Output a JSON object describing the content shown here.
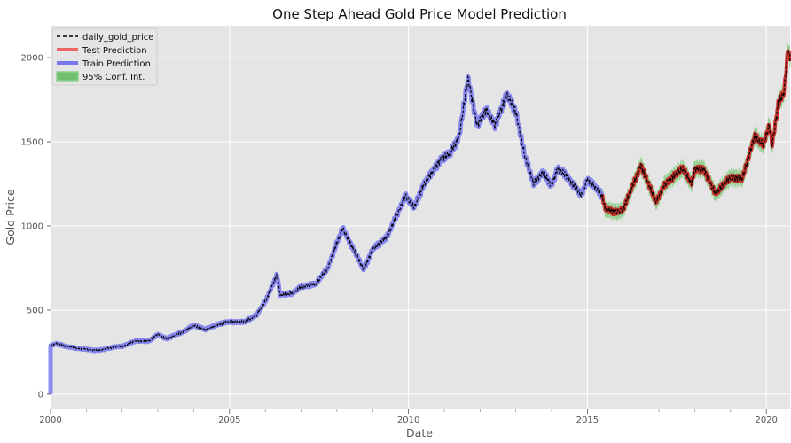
{
  "chart_data": {
    "type": "line",
    "title": "One Step Ahead Gold Price Model Prediction",
    "xlabel": "Date",
    "ylabel": "Gold Price",
    "xlim": [
      "2000-01-01",
      "2020-08-31"
    ],
    "ylim": [
      -90,
      2190
    ],
    "grid": true,
    "legend_position": "top-left",
    "x_major_ticks": [
      "2000",
      "2005",
      "2010",
      "2015",
      "2020"
    ],
    "y_ticks": [
      "0",
      "500",
      "1000",
      "1500",
      "2000"
    ],
    "legend": [
      {
        "label": "daily_gold_price",
        "style": "dashed-line",
        "color": "#000000"
      },
      {
        "label": "Test Prediction",
        "style": "line",
        "color": "#ee6666"
      },
      {
        "label": "Train Prediction",
        "style": "line",
        "color": "#7777ee"
      },
      {
        "label": "95% Conf. Int.",
        "style": "band",
        "color": "#6fbf6f"
      }
    ],
    "split_date": "2015-06-01",
    "series": [
      {
        "name": "daily_gold_price",
        "points": [
          [
            "2000-01-01",
            290
          ],
          [
            "2000-03-01",
            300
          ],
          [
            "2000-06-01",
            285
          ],
          [
            "2000-09-01",
            275
          ],
          [
            "2001-01-01",
            268
          ],
          [
            "2001-04-01",
            260
          ],
          [
            "2001-07-01",
            266
          ],
          [
            "2001-10-01",
            280
          ],
          [
            "2002-01-01",
            285
          ],
          [
            "2002-06-01",
            318
          ],
          [
            "2002-10-01",
            315
          ],
          [
            "2003-01-01",
            355
          ],
          [
            "2003-04-01",
            330
          ],
          [
            "2003-10-01",
            375
          ],
          [
            "2004-01-01",
            410
          ],
          [
            "2004-05-01",
            385
          ],
          [
            "2004-10-01",
            420
          ],
          [
            "2005-01-01",
            430
          ],
          [
            "2005-06-01",
            428
          ],
          [
            "2005-10-01",
            470
          ],
          [
            "2006-01-01",
            550
          ],
          [
            "2006-05-01",
            710
          ],
          [
            "2006-06-01",
            590
          ],
          [
            "2006-10-01",
            600
          ],
          [
            "2007-01-01",
            640
          ],
          [
            "2007-06-01",
            655
          ],
          [
            "2007-10-01",
            750
          ],
          [
            "2008-01-01",
            900
          ],
          [
            "2008-03-01",
            985
          ],
          [
            "2008-06-01",
            880
          ],
          [
            "2008-10-01",
            740
          ],
          [
            "2009-01-01",
            860
          ],
          [
            "2009-06-01",
            940
          ],
          [
            "2009-12-01",
            1180
          ],
          [
            "2010-03-01",
            1110
          ],
          [
            "2010-06-01",
            1240
          ],
          [
            "2010-12-01",
            1400
          ],
          [
            "2011-03-01",
            1430
          ],
          [
            "2011-06-01",
            1530
          ],
          [
            "2011-09-01",
            1880
          ],
          [
            "2011-12-01",
            1600
          ],
          [
            "2012-03-01",
            1690
          ],
          [
            "2012-06-01",
            1600
          ],
          [
            "2012-10-01",
            1780
          ],
          [
            "2013-01-01",
            1680
          ],
          [
            "2013-04-01",
            1420
          ],
          [
            "2013-07-01",
            1250
          ],
          [
            "2013-10-01",
            1320
          ],
          [
            "2014-01-01",
            1240
          ],
          [
            "2014-03-01",
            1340
          ],
          [
            "2014-06-01",
            1300
          ],
          [
            "2014-11-01",
            1180
          ],
          [
            "2015-01-01",
            1280
          ],
          [
            "2015-06-01",
            1180
          ],
          [
            "2015-07-01",
            1100
          ],
          [
            "2015-11-01",
            1080
          ],
          [
            "2016-01-01",
            1100
          ],
          [
            "2016-07-01",
            1360
          ],
          [
            "2016-12-01",
            1140
          ],
          [
            "2017-03-01",
            1250
          ],
          [
            "2017-09-01",
            1340
          ],
          [
            "2017-12-01",
            1250
          ],
          [
            "2018-01-01",
            1340
          ],
          [
            "2018-04-01",
            1340
          ],
          [
            "2018-08-01",
            1190
          ],
          [
            "2019-01-01",
            1290
          ],
          [
            "2019-05-01",
            1280
          ],
          [
            "2019-09-01",
            1530
          ],
          [
            "2019-12-01",
            1480
          ],
          [
            "2020-02-01",
            1600
          ],
          [
            "2020-03-01",
            1480
          ],
          [
            "2020-05-01",
            1720
          ],
          [
            "2020-07-01",
            1800
          ],
          [
            "2020-08-10",
            2060
          ],
          [
            "2020-08-31",
            1980
          ]
        ]
      }
    ]
  }
}
